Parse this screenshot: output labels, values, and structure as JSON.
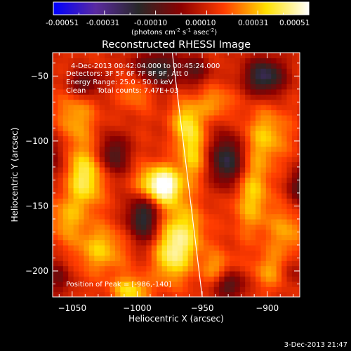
{
  "colorbar": {
    "ticks": [
      "-0.00051",
      "-0.00031",
      "-0.00010",
      "0.00010",
      "0.00031",
      "0.00051"
    ],
    "units_prefix": "(photons cm",
    "units_exp1": "-2",
    "units_mid": " s",
    "units_exp2": "-1",
    "units_mid2": " asec",
    "units_exp3": "-2",
    "units_suffix": ")"
  },
  "title": "Reconstructed RHESSI Image",
  "info": {
    "time_range": "4-Dec-2013 00:42:04.000 to 00:45:24.000",
    "detectors": "Detectors: 3F 5F 6F 7F 8F 9F, Att 0",
    "energy": "Energy Range: 25.0 - 50.0 keV",
    "clean": "Clean     Total counts: 7.47E+03",
    "peak": "Position of Peak = [-986,-140]"
  },
  "footer_timestamp": "3-Dec-2013 21:47",
  "chart_data": {
    "type": "heatmap",
    "title": "Reconstructed RHESSI Image",
    "xlabel": "Heliocentric X (arcsec)",
    "ylabel": "Heliocentric Y (arcsec)",
    "xlim": [
      -1065,
      -875
    ],
    "ylim": [
      -220,
      -32
    ],
    "xticks": [
      -1050,
      -1000,
      -950,
      -900
    ],
    "yticks": [
      -50,
      -100,
      -150,
      -200
    ],
    "xtick_labels": [
      "−1050",
      "−1000",
      "−950",
      "−900"
    ],
    "ytick_labels": [
      "−50",
      "−100",
      "−150",
      "−200"
    ],
    "color_range": [
      -0.00051,
      0.00051
    ],
    "colormap": [
      "#0000ff",
      "#5a2aa0",
      "#282828",
      "#8c0000",
      "#ff3c00",
      "#ffe100",
      "#ffffff"
    ],
    "peak_position": [
      -986,
      -140
    ],
    "limb_line": [
      [
        -973,
        -32
      ],
      [
        -950,
        -220
      ]
    ]
  }
}
